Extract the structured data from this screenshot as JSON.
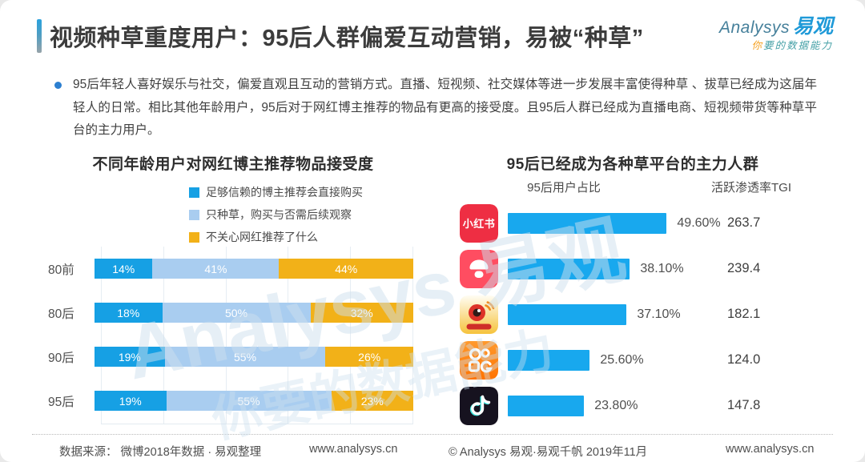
{
  "page": {
    "title": "视频种草重度用户：95后人群偏爱互动营销，易被“种草”",
    "logo": {
      "brand_en": "Analysys",
      "brand_cn": "易观",
      "tagline_first": "你",
      "tagline_rest": "要的数据能力"
    },
    "intro": "95后年轻人喜好娱乐与社交，偏爱直观且互动的营销方式。直播、短视频、社交媒体等进一步发展丰富使得种草 、拔草已经成为这届年轻人的日常。相比其他年龄用户，95后对于网红博主推荐的物品有更高的接受度。且95后人群已经成为直播电商、短视频带货等种草平台的主力用户。",
    "watermark_line1": "Analysys 易观",
    "watermark_line2": "你要的数据能力"
  },
  "chart_data": [
    {
      "type": "bar",
      "variant": "stacked-horizontal",
      "title": "不同年龄用户对网红博主推荐物品接受度",
      "categories": [
        "80前",
        "80后",
        "90后",
        "95后"
      ],
      "series": [
        {
          "name": "足够信赖的博主推荐会直接购买",
          "color": "#16a0e4",
          "values": [
            14,
            18,
            19,
            19
          ]
        },
        {
          "name": "只种草，购买与否需后续观察",
          "color": "#a9cdf0",
          "values": [
            41,
            50,
            55,
            55
          ]
        },
        {
          "name": "不关心网红推荐了什么",
          "color": "#f2b118",
          "values": [
            44,
            32,
            26,
            23
          ]
        }
      ],
      "value_suffix": "%",
      "grid": true,
      "legend_position": "top"
    },
    {
      "type": "bar",
      "variant": "horizontal",
      "title": "95后已经成为各种草平台的主力人群",
      "columns": [
        "95后用户占比",
        "活跃渗透率TGI"
      ],
      "bar_color": "#18a8ee",
      "rows": [
        {
          "icon": "xiaohongshu-icon",
          "icon_label": "小红书",
          "share": "49.60%",
          "share_value": 49.6,
          "tgi": "263.7"
        },
        {
          "icon": "mogujie-icon",
          "share": "38.10%",
          "share_value": 38.1,
          "tgi": "239.4"
        },
        {
          "icon": "weibo-icon",
          "share": "37.10%",
          "share_value": 37.1,
          "tgi": "182.1"
        },
        {
          "icon": "kuaishou-icon",
          "share": "25.60%",
          "share_value": 25.6,
          "tgi": "124.0"
        },
        {
          "icon": "douyin-icon",
          "share": "23.80%",
          "share_value": 23.8,
          "tgi": "147.8"
        }
      ]
    }
  ],
  "footer": {
    "source": "数据来源： 微博2018年数据 · 易观整理",
    "url_left": "www.analysys.cn",
    "copyright": "© Analysys 易观·易观千帆 2019年11月",
    "url_right": "www.analysys.cn"
  }
}
